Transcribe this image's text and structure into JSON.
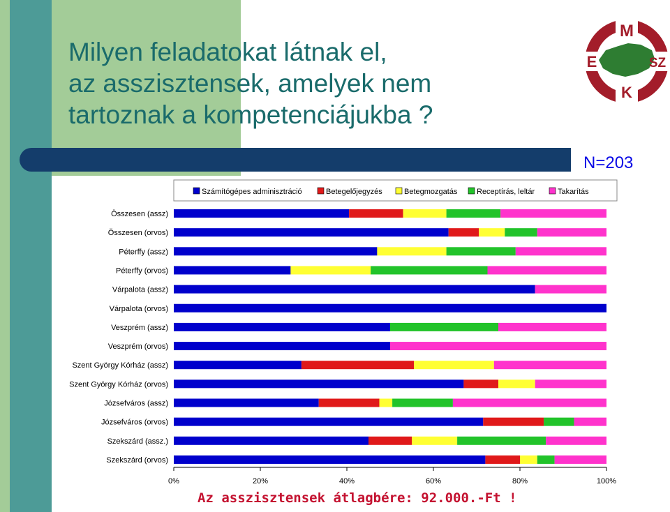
{
  "slide": {
    "title": "Milyen feladatokat látnak el,\naz asszisztensek, amelyek nem\ntartoznak a kompetenciájukba ?",
    "n_label": "N=203",
    "bottom_note": "Az asszisztensek átlagbére: 92.000.-Ft !",
    "logo": {
      "letters": [
        "M",
        "E",
        "SZ",
        "K"
      ],
      "color": "#a31d2a",
      "map_color": "#2e7d32"
    }
  },
  "chart_data": {
    "type": "bar",
    "orientation": "horizontal",
    "stacked": "percent",
    "categories": [
      "Összesen (assz)",
      "Összesen (orvos)",
      "Péterffy (assz)",
      "Péterffy (orvos)",
      "Várpalota (assz)",
      "Várpalota (orvos)",
      "Veszprém (assz)",
      "Veszprém (orvos)",
      "Szent György Kórház (assz)",
      "Szent György Kórház (orvos)",
      "Józsefváros (assz)",
      "Józsefváros (orvos)",
      "Szekszárd (assz.)",
      "Szekszárd (orvos)"
    ],
    "series": [
      {
        "name": "Számítógépes adminisztráció",
        "color": "#0000cc",
        "values": [
          40.5,
          63.5,
          47,
          27,
          83.5,
          100,
          50,
          50,
          29.5,
          67,
          33.5,
          71.5,
          45,
          72
        ]
      },
      {
        "name": "Betegelőjegyzés",
        "color": "#e0191a",
        "values": [
          12.5,
          7,
          0,
          0,
          0,
          0,
          0,
          0,
          26,
          8,
          14,
          14,
          10,
          8
        ]
      },
      {
        "name": "Betegmozgatás",
        "color": "#ffff33",
        "values": [
          10,
          6,
          16,
          18.5,
          0,
          0,
          0,
          0,
          18.5,
          8.5,
          3,
          0,
          10.5,
          4
        ]
      },
      {
        "name": "Receptírás, leltár",
        "color": "#22c32a",
        "values": [
          12.5,
          7.5,
          16,
          27,
          0,
          0,
          25,
          0,
          0,
          0,
          14,
          7,
          20.5,
          4
        ]
      },
      {
        "name": "Takarítás",
        "color": "#ff33cc",
        "values": [
          24.5,
          16,
          21,
          27.5,
          16.5,
          0,
          25,
          50,
          26,
          16.5,
          35.5,
          7.5,
          14,
          12
        ]
      }
    ],
    "xlim": [
      0,
      100
    ],
    "x_ticks": [
      "0%",
      "20%",
      "40%",
      "60%",
      "80%",
      "100%"
    ],
    "legend_position": "top",
    "grid": false
  }
}
